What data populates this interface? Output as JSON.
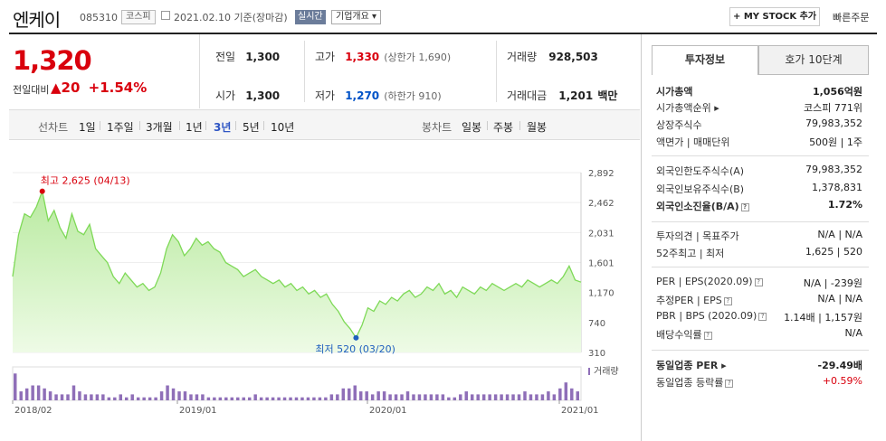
{
  "header": {
    "name": "엔케이",
    "code": "085310",
    "market": "코스피",
    "date": "2021.02.10 기준(장마감)",
    "realtime": "실시간",
    "company_info": "기업개요 ▾",
    "mystock": "+ MY STOCK 추가",
    "quick_order": "빠른주문"
  },
  "quote": {
    "price": "1,320",
    "change_label": "전일대비",
    "change": "▲20",
    "change_pct": "+1.54%",
    "prev_label": "전일",
    "prev": "1,300",
    "open_label": "시가",
    "open": "1,300",
    "high_label": "고가",
    "high": "1,330",
    "upper_limit": "(상한가 1,690)",
    "low_label": "저가",
    "low": "1,270",
    "lower_limit": "(하한가 910)",
    "volume_label": "거래량",
    "volume": "928,503",
    "amount_label": "거래대금",
    "amount": "1,201",
    "amount_unit": "백만"
  },
  "periods": {
    "chart_label": "선차트",
    "items": [
      "1일",
      "1주일",
      "3개월",
      "1년",
      "3년",
      "5년",
      "10년"
    ],
    "selected": "3년",
    "candle_label": "봉차트",
    "candle_items": [
      "일봉",
      "주봉",
      "월봉"
    ]
  },
  "chart_data": {
    "type": "area",
    "y_ticks": [
      "2,892",
      "2,462",
      "2,031",
      "1,601",
      "1,170",
      "740",
      "310"
    ],
    "ylim": [
      310,
      2892
    ],
    "x_labels": [
      "2018/02",
      "2019/01",
      "2020/01",
      "2021/01"
    ],
    "high_label": "최고 2,625 (04/13)",
    "low_label": "최저 520 (03/20)",
    "volume_label": "거래량",
    "series": [
      {
        "values": [
          1400,
          2000,
          2300,
          2250,
          2400,
          2625,
          2200,
          2350,
          2100,
          1950,
          2300,
          2050,
          2000,
          2150,
          1800,
          1700,
          1600,
          1400,
          1300,
          1450,
          1350,
          1250,
          1300,
          1200,
          1250,
          1450,
          1800,
          2000,
          1900,
          1700,
          1800,
          1950,
          1850,
          1900,
          1800,
          1750,
          1600,
          1550,
          1500,
          1400,
          1450,
          1500,
          1400,
          1350,
          1300,
          1350,
          1250,
          1300,
          1200,
          1250,
          1150,
          1200,
          1100,
          1150,
          1000,
          900,
          750,
          650,
          520,
          700,
          950,
          900,
          1050,
          1000,
          1100,
          1050,
          1150,
          1200,
          1100,
          1150,
          1250,
          1200,
          1300,
          1150,
          1200,
          1100,
          1250,
          1200,
          1150,
          1250,
          1200,
          1300,
          1250,
          1200,
          1250,
          1300,
          1250,
          1350,
          1300,
          1250,
          1300,
          1350,
          1300,
          1400,
          1550,
          1350,
          1320
        ],
        "color": "#7ed957"
      }
    ],
    "volume": [
      0.9,
      0.3,
      0.4,
      0.5,
      0.5,
      0.4,
      0.3,
      0.2,
      0.2,
      0.2,
      0.5,
      0.3,
      0.2,
      0.2,
      0.2,
      0.2,
      0.1,
      0.1,
      0.2,
      0.1,
      0.2,
      0.1,
      0.1,
      0.1,
      0.1,
      0.3,
      0.5,
      0.4,
      0.3,
      0.3,
      0.2,
      0.2,
      0.2,
      0.1,
      0.1,
      0.1,
      0.1,
      0.1,
      0.1,
      0.1,
      0.1,
      0.2,
      0.1,
      0.1,
      0.1,
      0.1,
      0.1,
      0.1,
      0.1,
      0.1,
      0.1,
      0.1,
      0.1,
      0.1,
      0.2,
      0.2,
      0.4,
      0.4,
      0.5,
      0.3,
      0.3,
      0.2,
      0.3,
      0.3,
      0.2,
      0.2,
      0.2,
      0.3,
      0.2,
      0.2,
      0.2,
      0.2,
      0.2,
      0.2,
      0.1,
      0.1,
      0.2,
      0.3,
      0.2,
      0.2,
      0.2,
      0.2,
      0.2,
      0.2,
      0.2,
      0.2,
      0.2,
      0.3,
      0.2,
      0.2,
      0.2,
      0.3,
      0.2,
      0.4,
      0.6,
      0.4,
      0.3
    ]
  },
  "tabs": {
    "invest": "투자정보",
    "hoga": "호가 10단계"
  },
  "invest": [
    {
      "label": "시가총액",
      "value": "1,056억원",
      "bold": true
    },
    {
      "label": "시가총액순위 ▸",
      "value": "코스피 771위"
    },
    {
      "label": "상장주식수",
      "value": "79,983,352"
    },
    {
      "label": "액면가 | 매매단위",
      "value": "500원 | 1주"
    },
    {
      "label": "외국인한도주식수(A)",
      "value": "79,983,352"
    },
    {
      "label": "외국인보유주식수(B)",
      "value": "1,378,831"
    },
    {
      "label": "외국인소진율(B/A)",
      "value": "1.72%",
      "bold": true,
      "q": true
    },
    {
      "label": "투자의견 | 목표주가",
      "value": "N/A | N/A"
    },
    {
      "label": "52주최고 | 최저",
      "value": "1,625 | 520"
    },
    {
      "label": "PER | EPS(2020.09)",
      "value": "N/A | -239원",
      "q": true
    },
    {
      "label": "추정PER | EPS",
      "value": "N/A | N/A",
      "q": true
    },
    {
      "label": "PBR | BPS (2020.09)",
      "value": "1.14배 | 1,157원",
      "q": true
    },
    {
      "label": "배당수익률",
      "value": "N/A",
      "q": true
    },
    {
      "label": "동일업종 PER ▸",
      "value": "-29.49배",
      "bold": true
    },
    {
      "label": "동일업종 등락률",
      "value": "+0.59%",
      "red": true,
      "q": true
    }
  ]
}
